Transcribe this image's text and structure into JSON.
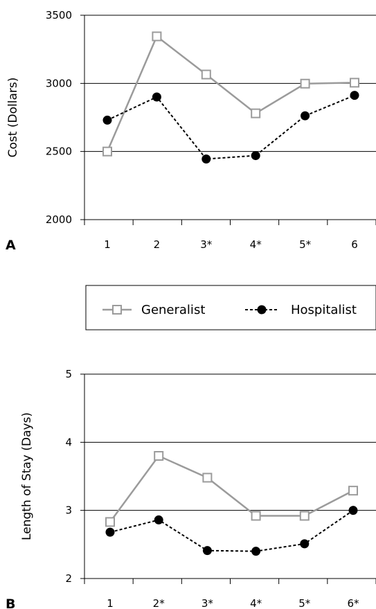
{
  "chart_data": [
    {
      "type": "line",
      "panel_label": "A",
      "ylabel": "Cost (Dollars)",
      "ylim": [
        2000,
        3500
      ],
      "yticks": [
        2000,
        2500,
        3000,
        3500
      ],
      "categories": [
        "1",
        "2",
        "3*",
        "4*",
        "5*",
        "6"
      ],
      "grid": "horizontal",
      "series": [
        {
          "name": "Generalist",
          "values": [
            2500,
            3345,
            3065,
            2780,
            2998,
            3005
          ]
        },
        {
          "name": "Hospitalist",
          "values": [
            2730,
            2900,
            2445,
            2470,
            2762,
            2912
          ]
        }
      ]
    },
    {
      "type": "line",
      "panel_label": "B",
      "ylabel": "Length of Stay (Days)",
      "ylim": [
        2,
        5
      ],
      "yticks": [
        2,
        3,
        4,
        5
      ],
      "categories": [
        "1",
        "2*",
        "3*",
        "4*",
        "5*",
        "6*"
      ],
      "grid": "horizontal",
      "series": [
        {
          "name": "Generalist",
          "values": [
            2.83,
            3.8,
            3.48,
            2.92,
            2.92,
            3.29
          ]
        },
        {
          "name": "Hospitalist",
          "values": [
            2.68,
            2.86,
            2.41,
            2.4,
            2.51,
            3.0
          ]
        }
      ]
    }
  ],
  "legend": {
    "items": [
      {
        "label": "Generalist"
      },
      {
        "label": "Hospitalist"
      }
    ]
  },
  "colors": {
    "generalist": "#9b9b9b",
    "hospitalist": "#000000",
    "grid": "#000000"
  }
}
